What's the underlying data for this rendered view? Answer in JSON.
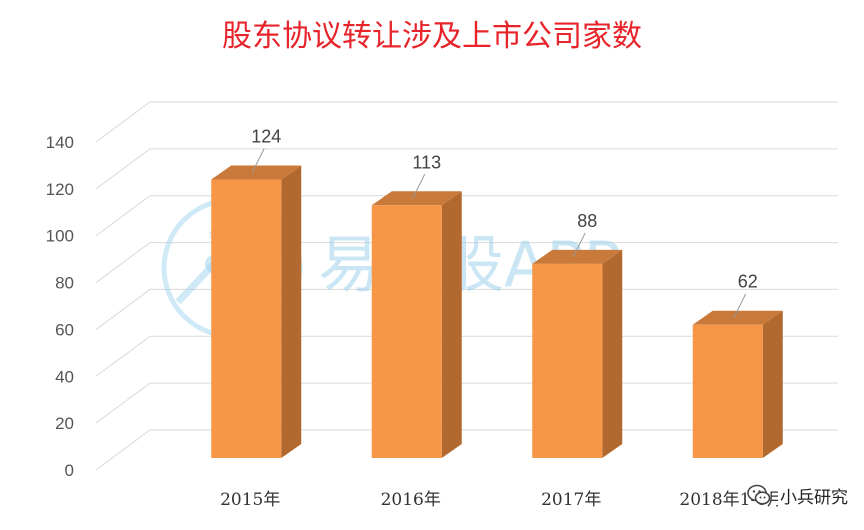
{
  "chart_data": {
    "type": "bar",
    "title": "股东协议转让涉及上市公司家数",
    "categories": [
      "2015年",
      "2016年",
      "2017年",
      "2018年1-6月"
    ],
    "values": [
      124,
      113,
      88,
      62
    ],
    "data_labels": [
      "124",
      "113",
      "88",
      "62"
    ],
    "ylim": [
      0,
      140
    ],
    "yticks": [
      0,
      20,
      40,
      60,
      80,
      100,
      120,
      140
    ],
    "ytick_labels": [
      "0",
      "20",
      "40",
      "60",
      "80",
      "100",
      "120",
      "140"
    ],
    "grid": true,
    "style": "3d-column",
    "colors": {
      "front": "#f79646",
      "side": "#b2692f",
      "top": "#c97a3a",
      "title": "#e8242b"
    }
  },
  "watermark": {
    "text": "易选股APP",
    "logo_text": "10X"
  },
  "badge": {
    "icon": "wechat-icon",
    "text": "小兵研究"
  }
}
